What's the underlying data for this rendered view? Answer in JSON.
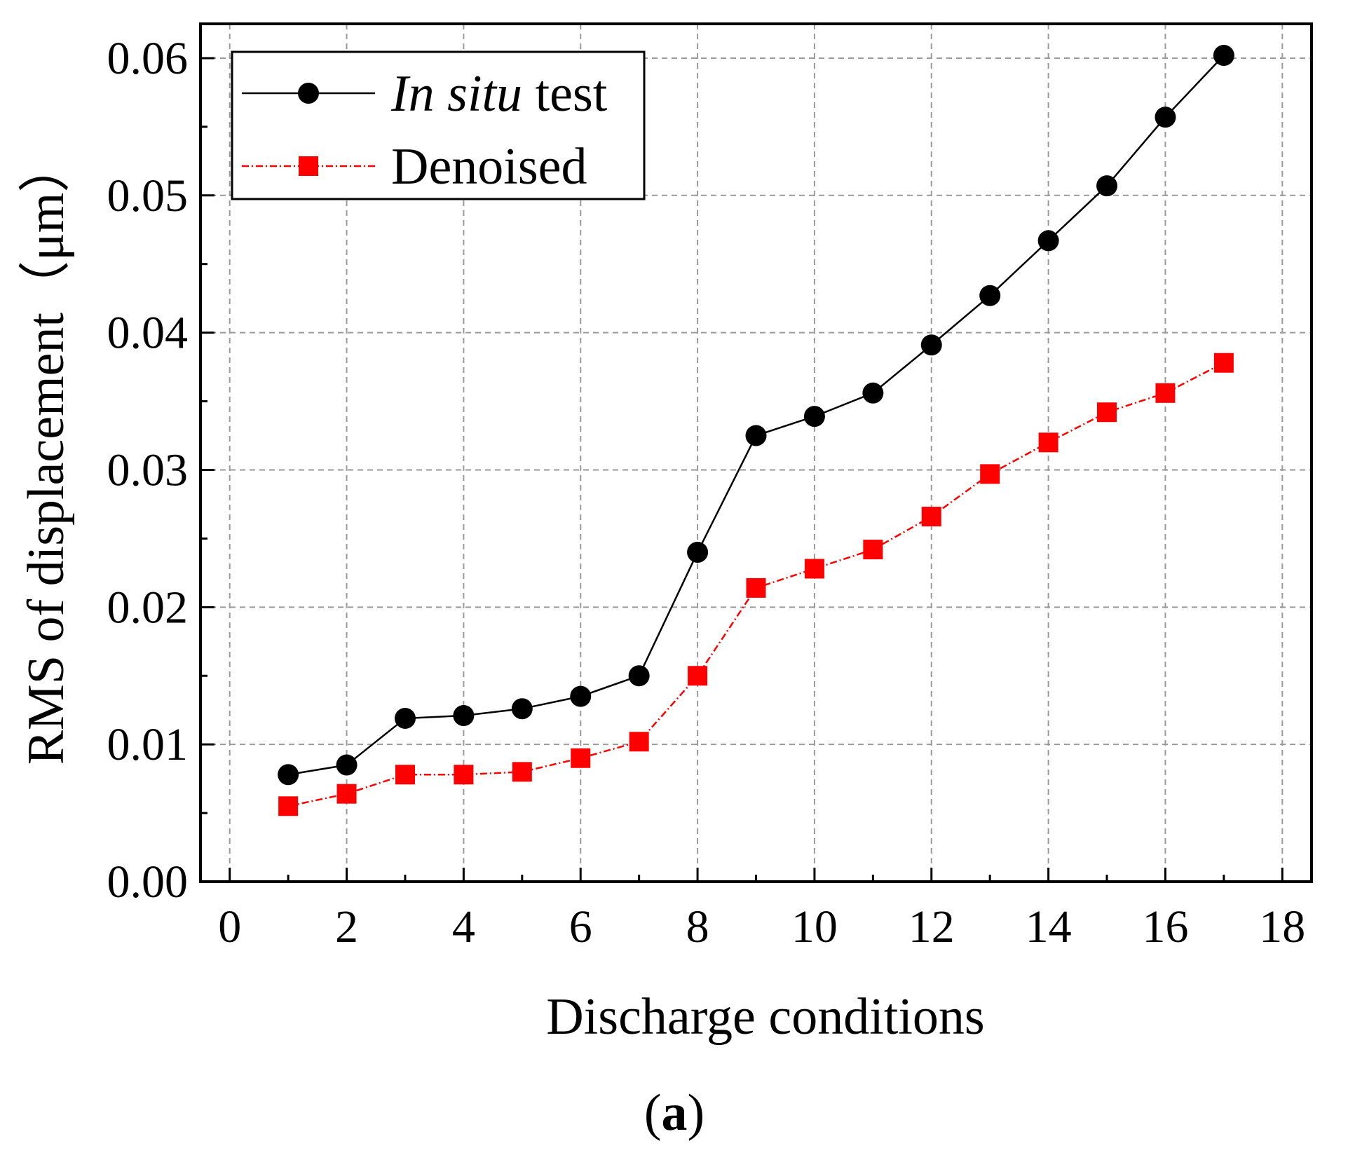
{
  "chart_data": {
    "type": "line",
    "title": "",
    "xlabel": "Discharge conditions",
    "ylabel": "RMS of displacement（μm）",
    "xlim": [
      -0.5,
      18.5
    ],
    "ylim": [
      0,
      0.0625
    ],
    "xticks": [
      0,
      2,
      4,
      6,
      8,
      10,
      12,
      14,
      16,
      18
    ],
    "xtick_labels": [
      "0",
      "2",
      "4",
      "6",
      "8",
      "10",
      "12",
      "14",
      "16",
      "18"
    ],
    "yticks": [
      0,
      0.01,
      0.02,
      0.03,
      0.04,
      0.05,
      0.06
    ],
    "ytick_labels": [
      "0.00",
      "0.01",
      "0.02",
      "0.03",
      "0.04",
      "0.05",
      "0.06"
    ],
    "grid": true,
    "legend_position": "top-left",
    "x": [
      1,
      2,
      3,
      4,
      5,
      6,
      7,
      8,
      9,
      10,
      11,
      12,
      13,
      14,
      15,
      16,
      17
    ],
    "series": [
      {
        "name_italic": "In situ",
        "name_rest": " test",
        "name": "In situ test",
        "color": "#000000",
        "marker": "circle",
        "line_style": "solid",
        "values": [
          0.0078,
          0.0085,
          0.0119,
          0.0121,
          0.0126,
          0.0135,
          0.015,
          0.024,
          0.0325,
          0.0339,
          0.0356,
          0.0391,
          0.0427,
          0.0467,
          0.0507,
          0.0557,
          0.0602
        ]
      },
      {
        "name": "Denoised",
        "color": "#ff0000",
        "marker": "square",
        "line_style": "dash-dot",
        "values": [
          0.0055,
          0.0064,
          0.0078,
          0.0078,
          0.008,
          0.009,
          0.0102,
          0.015,
          0.0214,
          0.0228,
          0.0242,
          0.0266,
          0.0297,
          0.032,
          0.0342,
          0.0356,
          0.0378
        ]
      }
    ],
    "caption_open": "(",
    "caption_letter": "a",
    "caption_close": ")"
  }
}
